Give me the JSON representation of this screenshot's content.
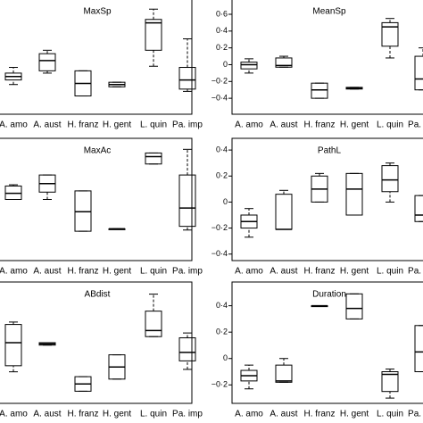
{
  "chart_data": [
    {
      "type": "box",
      "title": "MaxSp",
      "ylim": [
        0,
        1
      ],
      "categories": [
        "A. amo",
        "A. aust",
        "H. franz",
        "H. gent",
        "L. quin",
        "Pa. imp"
      ],
      "boxes": [
        {
          "low": 0.26,
          "q1": 0.3,
          "median": 0.33,
          "q3": 0.36,
          "high": 0.41
        },
        {
          "low": 0.36,
          "q1": 0.38,
          "median": 0.47,
          "q3": 0.53,
          "high": 0.56
        },
        {
          "low": 0.16,
          "q1": 0.16,
          "median": 0.27,
          "q3": 0.38,
          "high": 0.38
        },
        {
          "low": 0.24,
          "q1": 0.24,
          "median": 0.26,
          "q3": 0.28,
          "high": 0.28
        },
        {
          "low": 0.42,
          "q1": 0.56,
          "median": 0.8,
          "q3": 0.83,
          "high": 0.92
        },
        {
          "low": 0.2,
          "q1": 0.22,
          "median": 0.3,
          "q3": 0.41,
          "high": 0.66
        }
      ]
    },
    {
      "type": "box",
      "title": "MeanSp",
      "ylim": [
        -0.59,
        0.77
      ],
      "yticks": [
        {
          "value": -0.4,
          "label": "−0·4"
        },
        {
          "value": -0.2,
          "label": "−0·2"
        },
        0,
        {
          "value": 0.2,
          "label": "0·2"
        },
        {
          "value": 0.4,
          "label": "0·4"
        },
        {
          "value": 0.6,
          "label": "0·6"
        }
      ],
      "categories": [
        "A. amo",
        "A. aust",
        "H. franz",
        "H. gent",
        "L. quin",
        "Pa. imp"
      ],
      "boxes": [
        {
          "low": -0.1,
          "q1": -0.05,
          "median": 0,
          "q3": 0.03,
          "high": 0.07
        },
        {
          "low": -0.03,
          "q1": -0.03,
          "median": -0.01,
          "q3": 0.08,
          "high": 0.1
        },
        {
          "low": -0.4,
          "q1": -0.4,
          "median": -0.3,
          "q3": -0.22,
          "high": -0.22
        },
        {
          "low": -0.29,
          "q1": -0.29,
          "median": -0.28,
          "q3": -0.27,
          "high": -0.27
        },
        {
          "low": 0.08,
          "q1": 0.22,
          "median": 0.45,
          "q3": 0.5,
          "high": 0.55
        },
        {
          "low": -0.3,
          "q1": -0.3,
          "median": -0.17,
          "q3": 0.1,
          "high": 0.2
        }
      ]
    },
    {
      "type": "box",
      "title": "MaxAc",
      "ylim": [
        0,
        1
      ],
      "categories": [
        "A. amo",
        "A. aust",
        "H. franz",
        "H. gent",
        "L. quin",
        "Pa. imp"
      ],
      "boxes": [
        {
          "low": 0.5,
          "q1": 0.5,
          "median": 0.55,
          "q3": 0.61,
          "high": 0.62
        },
        {
          "low": 0.5,
          "q1": 0.56,
          "median": 0.63,
          "q3": 0.7,
          "high": 0.7
        },
        {
          "low": 0.24,
          "q1": 0.24,
          "median": 0.4,
          "q3": 0.57,
          "high": 0.57
        },
        {
          "low": 0.26,
          "q1": 0.26,
          "median": 0.26,
          "q3": 0.26,
          "high": 0.26
        },
        {
          "low": 0.79,
          "q1": 0.79,
          "median": 0.85,
          "q3": 0.88,
          "high": 0.88
        },
        {
          "low": 0.25,
          "q1": 0.28,
          "median": 0.43,
          "q3": 0.7,
          "high": 0.91
        }
      ]
    },
    {
      "type": "box",
      "title": "PathL",
      "ylim": [
        -0.45,
        0.49
      ],
      "yticks": [
        {
          "value": -0.4,
          "label": "−0·4"
        },
        {
          "value": -0.2,
          "label": "−0·2"
        },
        0,
        {
          "value": 0.2,
          "label": "0·2"
        },
        {
          "value": 0.4,
          "label": "0·4"
        }
      ],
      "categories": [
        "A. amo",
        "A. aust",
        "H. franz",
        "H. gent",
        "L. quin",
        "Pa. imp"
      ],
      "boxes": [
        {
          "low": -0.27,
          "q1": -0.2,
          "median": -0.15,
          "q3": -0.1,
          "high": -0.05
        },
        {
          "low": -0.21,
          "q1": -0.21,
          "median": -0.21,
          "q3": 0.06,
          "high": 0.09
        },
        {
          "low": 0,
          "q1": 0,
          "median": 0.1,
          "q3": 0.2,
          "high": 0.22
        },
        {
          "low": -0.1,
          "q1": -0.1,
          "median": 0.1,
          "q3": 0.22,
          "high": 0.22
        },
        {
          "low": 0,
          "q1": 0.08,
          "median": 0.17,
          "q3": 0.28,
          "high": 0.3
        },
        {
          "low": -0.15,
          "q1": -0.15,
          "median": -0.1,
          "q3": 0.05,
          "high": 0.05
        }
      ]
    },
    {
      "type": "box",
      "title": "ABdist",
      "ylim": [
        0,
        1
      ],
      "categories": [
        "A. amo",
        "A. aust",
        "H. franz",
        "H. gent",
        "L. quin",
        "Pa. imp"
      ],
      "boxes": [
        {
          "low": 0.26,
          "q1": 0.31,
          "median": 0.5,
          "q3": 0.65,
          "high": 0.67
        },
        {
          "low": 0.48,
          "q1": 0.48,
          "median": 0.49,
          "q3": 0.5,
          "high": 0.5
        },
        {
          "low": 0.1,
          "q1": 0.1,
          "median": 0.16,
          "q3": 0.22,
          "high": 0.22
        },
        {
          "low": 0.2,
          "q1": 0.2,
          "median": 0.3,
          "q3": 0.4,
          "high": 0.4
        },
        {
          "low": 0.55,
          "q1": 0.55,
          "median": 0.6,
          "q3": 0.76,
          "high": 0.9
        },
        {
          "low": 0.28,
          "q1": 0.35,
          "median": 0.42,
          "q3": 0.54,
          "high": 0.58
        }
      ]
    },
    {
      "type": "box",
      "title": "Duration",
      "ylim": [
        -0.34,
        0.58
      ],
      "yticks": [
        {
          "value": -0.2,
          "label": "−0·2"
        },
        0,
        {
          "value": 0.2,
          "label": "0·2"
        },
        {
          "value": 0.4,
          "label": "0·4"
        }
      ],
      "categories": [
        "A. amo",
        "A. aust",
        "H. franz",
        "H. gent",
        "L. quin",
        "Pa. imp"
      ],
      "boxes": [
        {
          "low": -0.23,
          "q1": -0.17,
          "median": -0.13,
          "q3": -0.09,
          "high": -0.05
        },
        {
          "low": -0.18,
          "q1": -0.18,
          "median": -0.17,
          "q3": -0.05,
          "high": 0
        },
        {
          "low": 0.4,
          "q1": 0.4,
          "median": 0.4,
          "q3": 0.4,
          "high": 0.4
        },
        {
          "low": 0.3,
          "q1": 0.3,
          "median": 0.38,
          "q3": 0.49,
          "high": 0.49
        },
        {
          "low": -0.3,
          "q1": -0.25,
          "median": -0.12,
          "q3": -0.1,
          "high": -0.08
        },
        {
          "low": -0.1,
          "q1": -0.1,
          "median": 0.05,
          "q3": 0.25,
          "high": 0.25
        }
      ]
    }
  ]
}
